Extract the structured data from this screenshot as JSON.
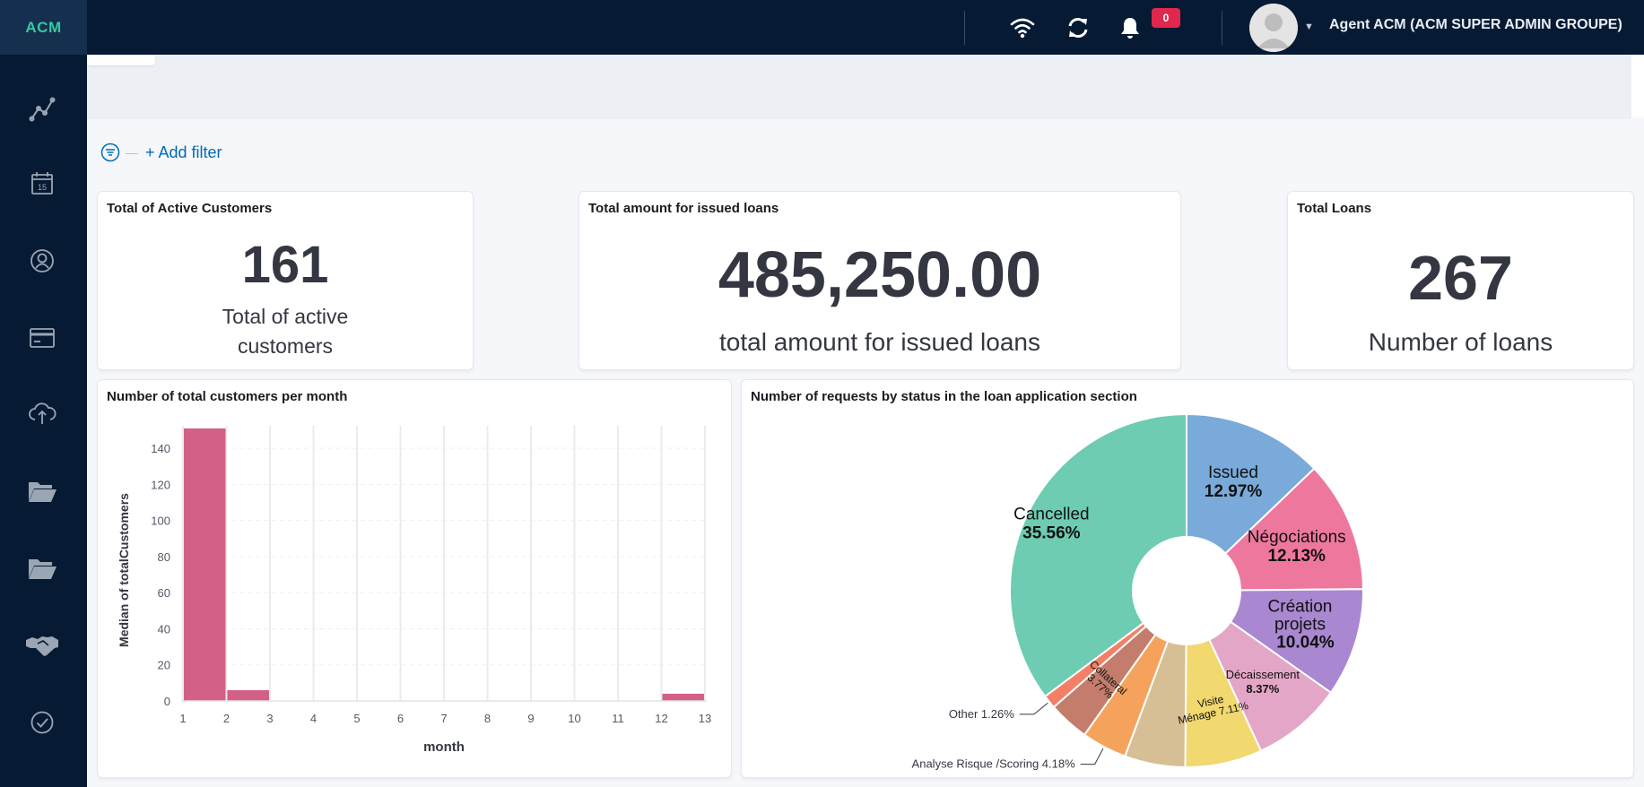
{
  "app": {
    "brand": "ACM"
  },
  "topbar": {
    "notification_count": "0",
    "user_name": "Agent ACM (ACM SUPER ADMIN GROUPE)",
    "icons": [
      "wifi-icon",
      "refresh-icon",
      "bell-icon"
    ]
  },
  "sidebar": {
    "items": [
      "analytics-icon",
      "calendar-icon",
      "customer-icon",
      "card-icon",
      "cloud-upload-icon",
      "folder-open-icon",
      "folder-open-icon",
      "handshake-icon",
      "check-circle-icon"
    ],
    "calendar_day": "15"
  },
  "filter": {
    "add_label": "+ Add filter"
  },
  "metrics": [
    {
      "title": "Total of Active Customers",
      "value": "161",
      "label_lines": [
        "Total of active",
        "customers"
      ]
    },
    {
      "title": "Total amount for issued loans",
      "value": "485,250.00",
      "label": "total amount for issued loans"
    },
    {
      "title": "Total Loans",
      "value": "267",
      "label": "Number of loans"
    }
  ],
  "colors": {
    "bar": "#d36086",
    "topbar": "#071a33",
    "accent_link": "#006bb8",
    "badge": "#e0284f"
  },
  "bar_panel": {
    "title": "Number of total customers per month"
  },
  "pie_panel": {
    "title": "Number of requests by status in the loan application section"
  },
  "chart_data": [
    {
      "type": "bar",
      "title": "Number of total customers per month",
      "xlabel": "month",
      "ylabel": "Median of totalCustomers",
      "x": [
        1,
        2,
        12
      ],
      "values": [
        151,
        6,
        4
      ],
      "xlim": [
        1,
        13
      ],
      "ylim": [
        0,
        150
      ],
      "xticks": [
        "1",
        "2",
        "3",
        "4",
        "5",
        "6",
        "7",
        "8",
        "9",
        "10",
        "11",
        "12",
        "13"
      ],
      "yticks": [
        "0",
        "20",
        "40",
        "60",
        "80",
        "100",
        "120",
        "140"
      ],
      "grid": true
    },
    {
      "type": "pie",
      "title": "Number of requests by status in the loan application section",
      "donut": true,
      "slices": [
        {
          "label": "Issued",
          "pct_label": "12.97%",
          "value": 12.97,
          "color": "#79aad9"
        },
        {
          "label": "Négociations",
          "pct_label": "12.13%",
          "value": 12.13,
          "color": "#ee789d"
        },
        {
          "label": "Création projets",
          "label_lines": [
            "Création",
            "projets"
          ],
          "pct_label": "10.04%",
          "value": 10.04,
          "color": "#a987d1"
        },
        {
          "label": "Décaissement",
          "pct_label": "8.37%",
          "value": 8.37,
          "color": "#e4a6c7"
        },
        {
          "label": "Visite Ménage",
          "label_lines": [
            "Visite",
            "Ménage"
          ],
          "pct_label": "7.11%",
          "value": 7.11,
          "color": "#f1d86f"
        },
        {
          "label": "",
          "pct_label": "",
          "value": 5.6,
          "color": "#d6bf95"
        },
        {
          "label": "Analyse Risque /Scoring",
          "pct_label": "4.18%",
          "value": 4.18,
          "color": "#f5a35c"
        },
        {
          "label": "Collateral",
          "pct_label": "3.77%",
          "value": 3.77,
          "color": "#c47c6c"
        },
        {
          "label": "Other",
          "pct_label": "1.26%",
          "value": 1.26,
          "color": "#f47f67"
        },
        {
          "label": "Cancelled",
          "pct_label": "35.56%",
          "value": 35.56,
          "color": "#6dccb1"
        }
      ]
    }
  ]
}
